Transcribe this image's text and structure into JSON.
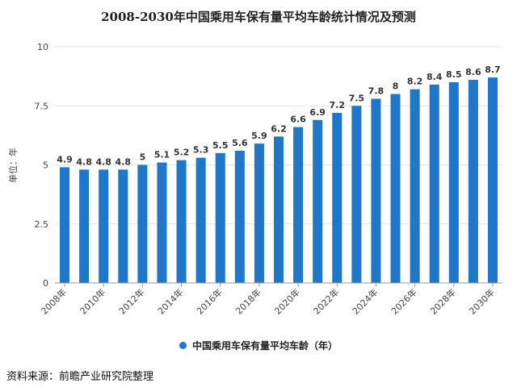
{
  "chart_data": {
    "type": "bar",
    "title": "2008-2030年中国乘用车保有量平均车龄统计情况及预测",
    "ylabel": "单位：年",
    "xlabel": "",
    "categories": [
      "2008年",
      "2009年",
      "2010年",
      "2011年",
      "2012年",
      "2013年",
      "2014年",
      "2015年",
      "2016年",
      "2017年",
      "2018年",
      "2019年",
      "2020年",
      "2021年",
      "2022年",
      "2023年",
      "2024年",
      "2025年",
      "2026年",
      "2027年",
      "2028年",
      "2029年",
      "2030年"
    ],
    "x_tick_labels": [
      "2008年",
      "2010年",
      "2012年",
      "2014年",
      "2016年",
      "2018年",
      "2020年",
      "2022年",
      "2024年",
      "2026年",
      "2028年",
      "2030年"
    ],
    "series": [
      {
        "name": "中国乘用车保有量平均车龄（年）",
        "values": [
          4.9,
          4.8,
          4.8,
          4.8,
          5,
          5.1,
          5.2,
          5.3,
          5.5,
          5.6,
          5.9,
          6.2,
          6.6,
          6.9,
          7.2,
          7.5,
          7.8,
          8,
          8.2,
          8.4,
          8.5,
          8.6,
          8.7
        ],
        "labels": [
          "4.9",
          "4.8",
          "4.8",
          "4.8",
          "5",
          "5.1",
          "5.2",
          "5.3",
          "5.5",
          "5.6",
          "5.9",
          "6.2",
          "6.6",
          "6.9",
          "7.2",
          "7.5",
          "7.8",
          "8",
          "8.2",
          "8.4",
          "8.5",
          "8.6",
          "8.7"
        ]
      }
    ],
    "ylim": [
      0,
      10
    ],
    "y_ticks": [
      "0",
      "2.5",
      "5",
      "7.5",
      "10"
    ],
    "grid": true,
    "legend_position": "bottom-center",
    "colors": {
      "bar": "#1f77c9",
      "grid": "#e3e3e3",
      "axis": "#999999"
    }
  },
  "source": "资料来源：前瞻产业研究院整理"
}
